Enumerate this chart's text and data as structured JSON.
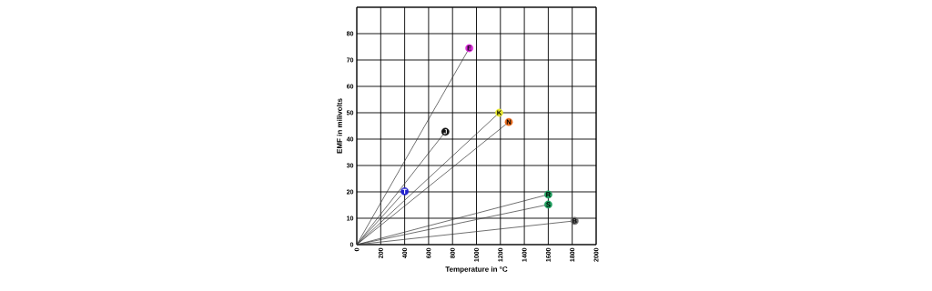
{
  "chart_data": {
    "type": "line",
    "xlabel": "Temperature in °C",
    "ylabel": "EMF in milivolts",
    "xlim": [
      0,
      2000
    ],
    "xticks": [
      0,
      200,
      400,
      600,
      800,
      1000,
      1200,
      1400,
      1600,
      1800,
      2000
    ],
    "ylim": [
      0,
      90
    ],
    "yticks": [
      0,
      10,
      20,
      30,
      40,
      50,
      60,
      70,
      80,
      {
        "value": 90,
        "label": null
      }
    ],
    "grid": true,
    "series": [
      {
        "color": "#333333",
        "x": [
          0,
          940
        ],
        "values": [
          0,
          74.5
        ]
      },
      {
        "color": "#333333",
        "x": [
          0,
          740
        ],
        "values": [
          0,
          42.8
        ]
      },
      {
        "color": "#333333",
        "x": [
          0,
          1190
        ],
        "values": [
          0,
          50
        ]
      },
      {
        "color": "#333333",
        "x": [
          0,
          1270
        ],
        "values": [
          0,
          46.5
        ]
      },
      {
        "color": "#333333",
        "x": [
          0,
          370
        ],
        "values": [
          0,
          18.6
        ]
      },
      {
        "color": "#333333",
        "x": [
          0,
          1600
        ],
        "values": [
          0,
          19
        ]
      },
      {
        "color": "#333333",
        "x": [
          0,
          1600
        ],
        "values": [
          0,
          15.2
        ]
      },
      {
        "color": "#333333",
        "x": [
          0,
          1820
        ],
        "values": [
          0,
          9
        ]
      },
      {
        "type": "scatter",
        "marker": "circle",
        "x": [
          940,
          740,
          1190,
          1270,
          400,
          1600,
          1600,
          1820
        ],
        "values": [
          74.5,
          42.8,
          50,
          46.5,
          20.2,
          19,
          15.2,
          9
        ],
        "colors": [
          "#e030e0",
          "#111111",
          "#e8e830",
          "#f07020",
          "#2424d0",
          "#20a060",
          "#20a060",
          "#707070"
        ]
      }
    ],
    "annotations": [
      {
        "text": "E",
        "x": 940,
        "y": 74.5
      },
      {
        "text": "J",
        "x": 740,
        "y": 42.8
      },
      {
        "text": "K",
        "x": 1190,
        "y": 50
      },
      {
        "text": "N",
        "x": 1270,
        "y": 46.5
      },
      {
        "text": "T",
        "x": 400,
        "y": 20.2
      },
      {
        "text": "R",
        "x": 1600,
        "y": 19
      },
      {
        "text": "S",
        "x": 1600,
        "y": 15.2
      },
      {
        "text": "B",
        "x": 1820,
        "y": 9
      }
    ]
  }
}
